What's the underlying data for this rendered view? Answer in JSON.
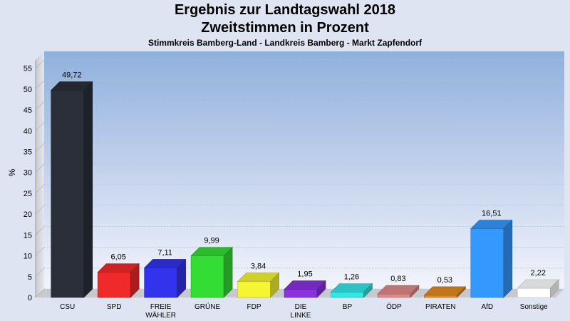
{
  "header": {
    "title": "Ergebnis zur Landtagswahl 2018",
    "subtitle": "Zweitstimmen in Prozent",
    "region": "Stimmkreis Bamberg-Land - Landkreis Bamberg - Markt Zapfendorf"
  },
  "chart_data": {
    "type": "bar",
    "title": "Ergebnis zur Landtagswahl 2018",
    "subtitle": "Zweitstimmen in Prozent",
    "xlabel": "",
    "ylabel": "%",
    "ylim": [
      0,
      57
    ],
    "yticks": [
      0,
      5,
      10,
      15,
      20,
      25,
      30,
      35,
      40,
      45,
      50,
      55
    ],
    "grid": true,
    "categories": [
      "CSU",
      "SPD",
      "FREIE\nWÄHLER",
      "GRÜNE",
      "FDP",
      "DIE\nLINKE",
      "BP",
      "ÖDP",
      "PIRATEN",
      "AfD",
      "Sonstige"
    ],
    "values": [
      49.72,
      6.05,
      7.11,
      9.99,
      3.84,
      1.95,
      1.26,
      0.83,
      0.53,
      16.51,
      2.22
    ],
    "value_labels": [
      "49,72",
      "6,05",
      "7,11",
      "9,99",
      "3,84",
      "1,95",
      "1,26",
      "0,83",
      "0,53",
      "16,51",
      "2,22"
    ],
    "colors": [
      "#2b2f3a",
      "#f02a2a",
      "#3333ee",
      "#33dd33",
      "#f5f533",
      "#8833dd",
      "#33e5e5",
      "#e08888",
      "#e08a22",
      "#3399ff",
      "#ffffff"
    ]
  }
}
